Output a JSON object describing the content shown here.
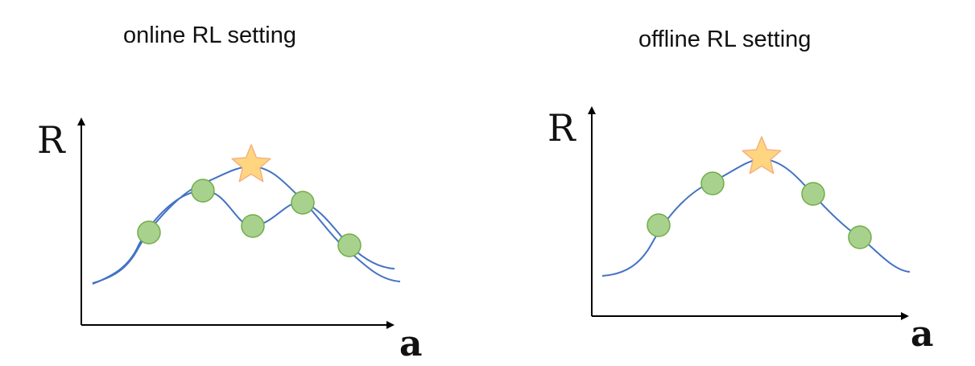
{
  "panels": [
    {
      "id": "online",
      "title": "online RL setting",
      "y_axis_label": "R",
      "x_axis_label": "a"
    },
    {
      "id": "offline",
      "title": "offline RL setting",
      "y_axis_label": "R",
      "x_axis_label": "a"
    }
  ],
  "colors": {
    "curve": "#4472C4",
    "sample_fill": "#A9D18E",
    "sample_stroke": "#70AD47",
    "star_fill": "#FFD580",
    "star_stroke": "#F4B183",
    "axis": "#000000"
  },
  "icons": {
    "sample_point": "circle",
    "optimum_marker": "star"
  }
}
